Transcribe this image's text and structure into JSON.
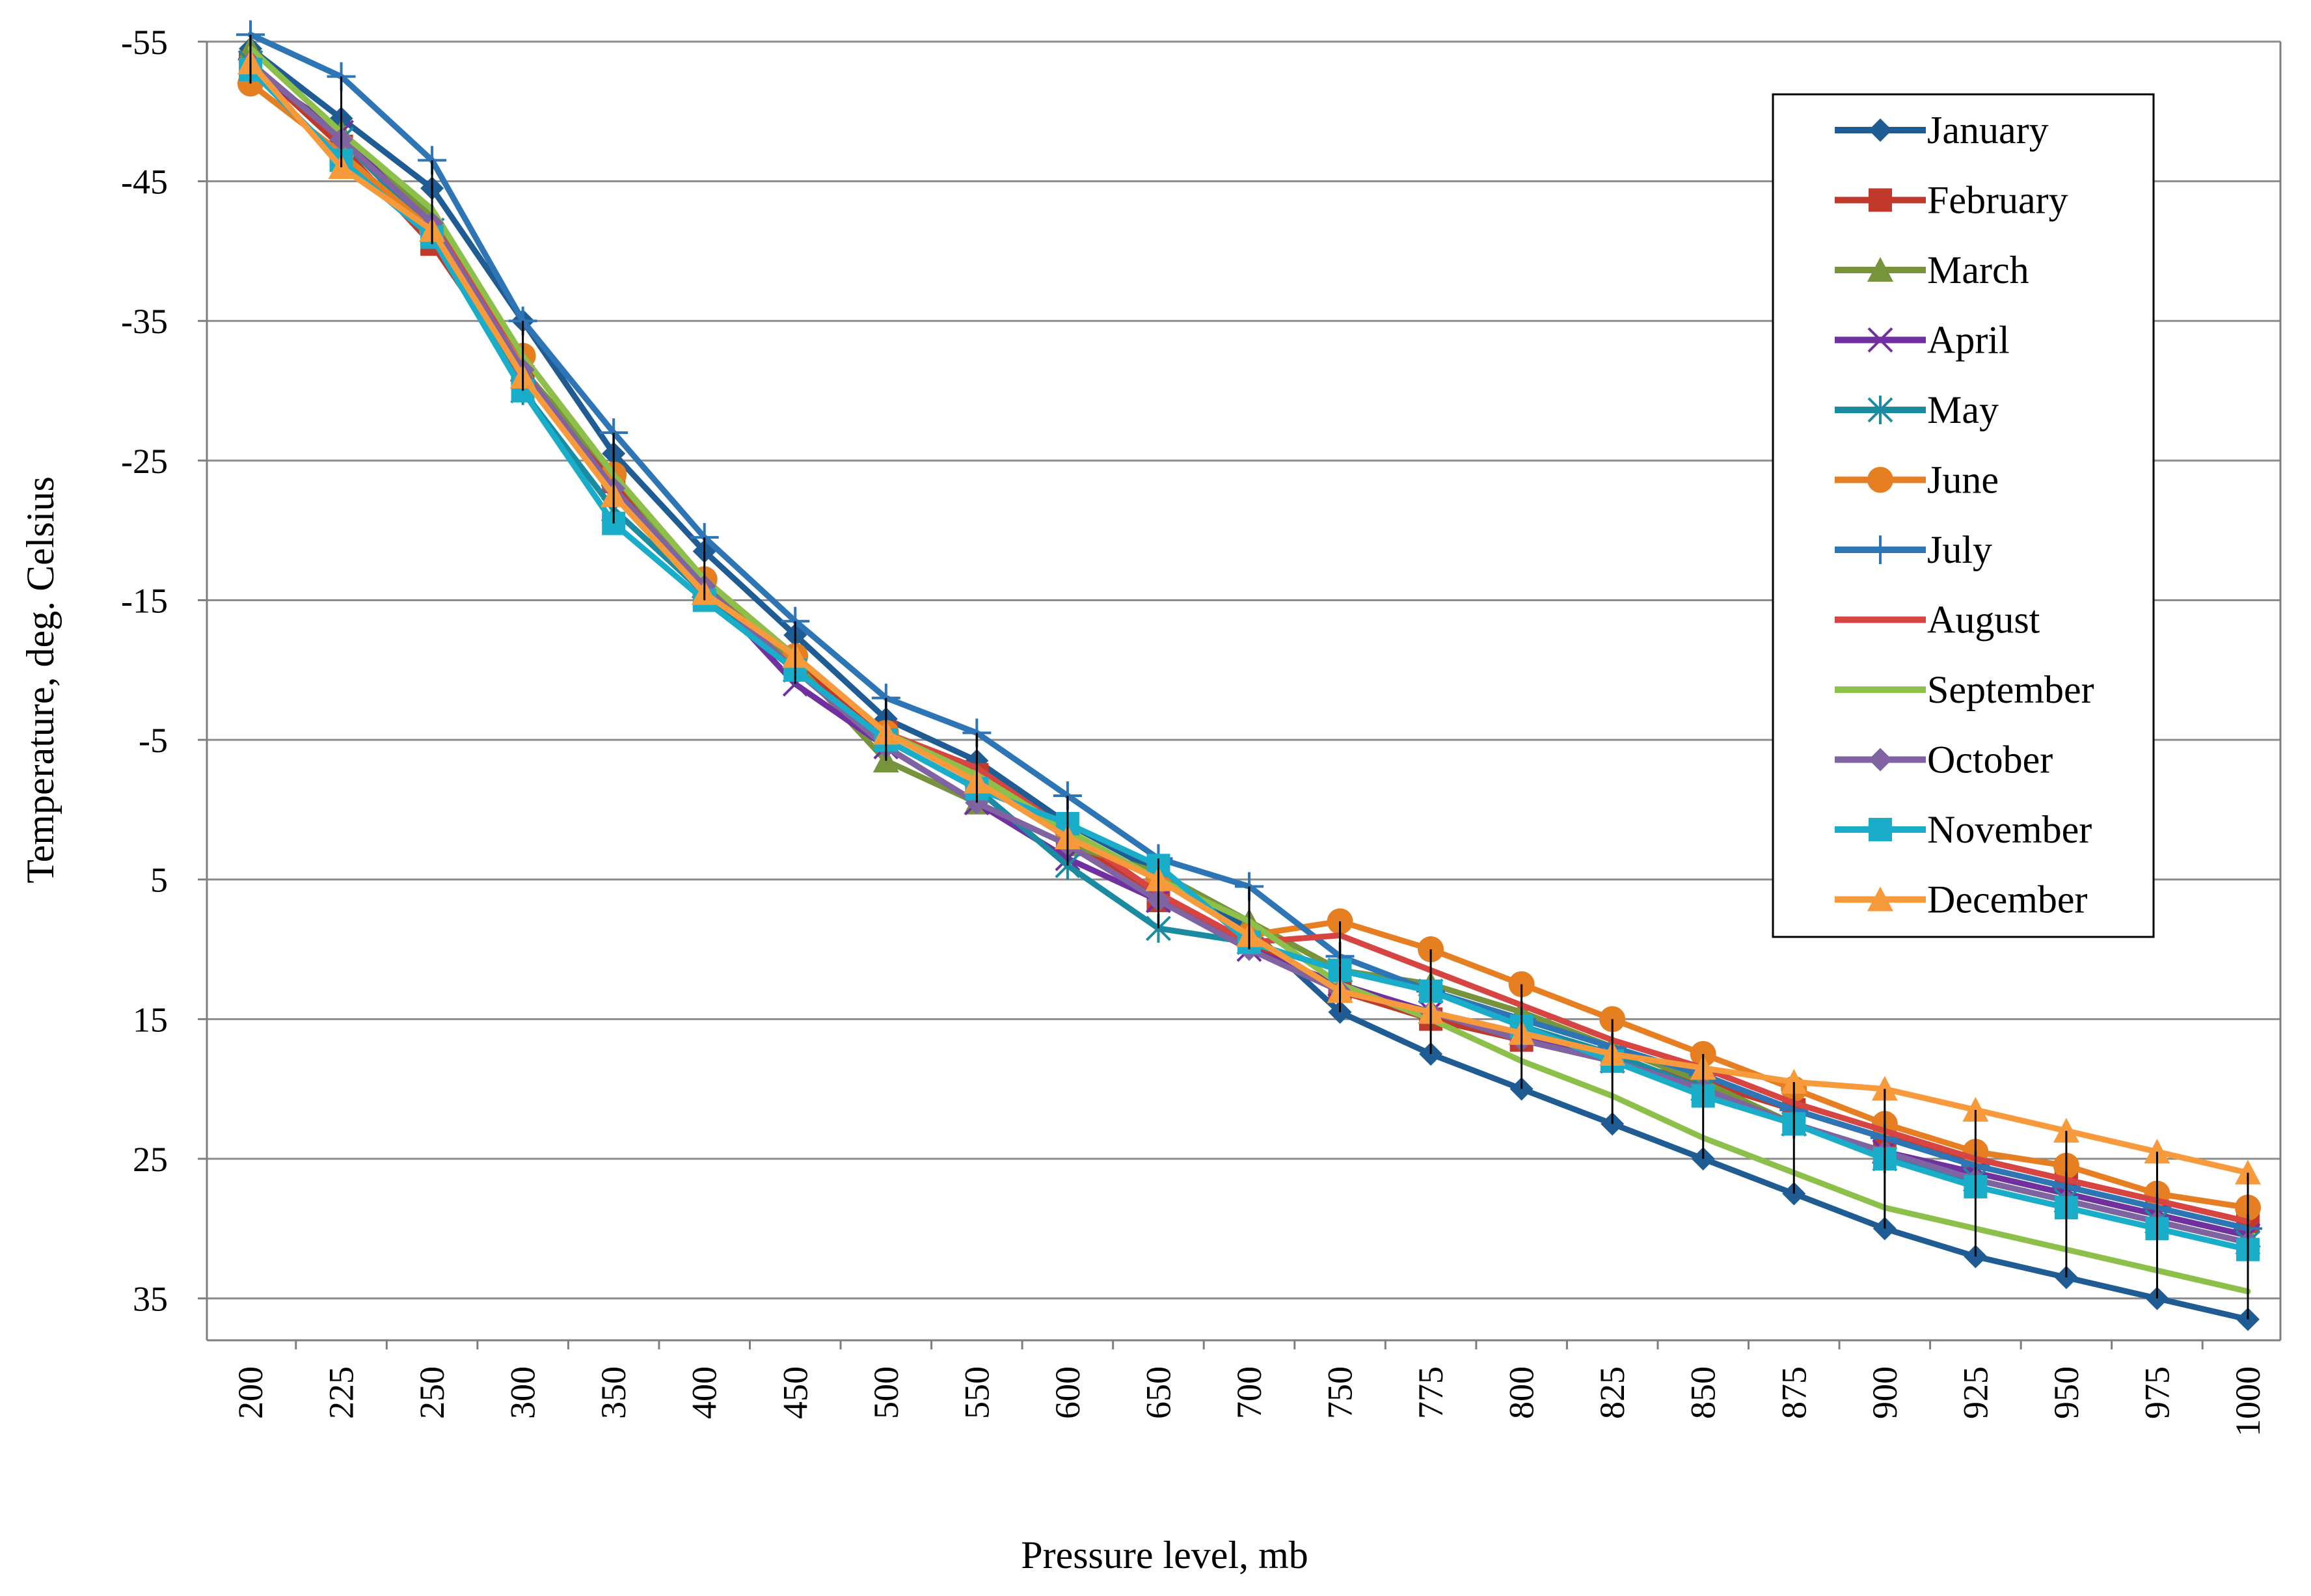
{
  "chart_data": {
    "type": "line",
    "title": "",
    "xlabel": "Pressure level, mb",
    "ylabel": "Temperature, deg. Celsius",
    "ylim": [
      -55,
      38
    ],
    "y_inverted": true,
    "y_ticks": [
      -55,
      -45,
      -35,
      -25,
      -15,
      -5,
      5,
      15,
      25,
      35
    ],
    "grid": true,
    "legend_position": "top-right",
    "categories": [
      "200",
      "225",
      "250",
      "300",
      "350",
      "400",
      "450",
      "500",
      "550",
      "600",
      "650",
      "700",
      "750",
      "775",
      "800",
      "825",
      "850",
      "875",
      "900",
      "925",
      "950",
      "975",
      "1000"
    ],
    "series": [
      {
        "name": "January",
        "color": "#1F5C93",
        "marker": "diamond",
        "values": [
          -54.5,
          -49.5,
          -44.5,
          -35,
          -25.5,
          -18.5,
          -12.5,
          -6.5,
          -3.5,
          1,
          4.5,
          8.5,
          14.5,
          17.5,
          20,
          22.5,
          25,
          27.5,
          30,
          32,
          33.5,
          35,
          36.5
        ]
      },
      {
        "name": "February",
        "color": "#C0392B",
        "marker": "square",
        "values": [
          -53.5,
          -47.5,
          -40.5,
          -31,
          -23.5,
          -16,
          -10.5,
          -5.5,
          -2.5,
          2,
          6.5,
          9.5,
          13,
          15,
          16.5,
          18,
          19.5,
          21.5,
          23.5,
          25,
          26.5,
          28,
          29.5
        ]
      },
      {
        "name": "March",
        "color": "#77933C",
        "marker": "triangle",
        "values": [
          -54.5,
          -48.5,
          -42.5,
          -31.5,
          -24,
          -16,
          -10.5,
          -3.5,
          -0.5,
          2.5,
          4.5,
          8,
          11.5,
          12.5,
          14.5,
          17,
          19.5,
          22.5,
          24.5,
          26,
          27.5,
          29,
          30.5
        ]
      },
      {
        "name": "April",
        "color": "#7030A0",
        "marker": "x",
        "values": [
          -53,
          -48.5,
          -41.5,
          -31.5,
          -22.5,
          -16,
          -9,
          -4.5,
          -0.5,
          3.5,
          6.5,
          10,
          12.5,
          14.5,
          16,
          18,
          20,
          22.5,
          24.5,
          26,
          27.5,
          29,
          30.5
        ]
      },
      {
        "name": "May",
        "color": "#1A8BA0",
        "marker": "asterisk",
        "values": [
          -53.5,
          -48,
          -41.5,
          -30,
          -21.5,
          -15.5,
          -10,
          -5,
          -1.5,
          4,
          8.5,
          9.5,
          11.5,
          13,
          15.5,
          17.5,
          20,
          22.5,
          25,
          26.5,
          28,
          29.5,
          31
        ]
      },
      {
        "name": "June",
        "color": "#E67E22",
        "marker": "circle",
        "values": [
          -52,
          -47,
          -41.5,
          -32.5,
          -24,
          -16.5,
          -11,
          -5.5,
          -2,
          1.5,
          5,
          9,
          8,
          10,
          12.5,
          15,
          17.5,
          20,
          22.5,
          24.5,
          25.5,
          27.5,
          28.5
        ]
      },
      {
        "name": "July",
        "color": "#2E75B6",
        "marker": "plus",
        "values": [
          -55.5,
          -52.5,
          -46.5,
          -35,
          -27,
          -19.5,
          -13.5,
          -8,
          -5.5,
          -1,
          3.5,
          5.5,
          10.5,
          13,
          15,
          17,
          19,
          21.5,
          23.5,
          25.5,
          27,
          28.5,
          30
        ]
      },
      {
        "name": "August",
        "color": "#D64541",
        "marker": "none",
        "values": [
          -53.5,
          -48,
          -42,
          -32.5,
          -24,
          -16.5,
          -11,
          -5.5,
          -3,
          1.5,
          6,
          9.5,
          9,
          11.5,
          14,
          16.5,
          18.5,
          21,
          23,
          25,
          26.5,
          28,
          29.5
        ]
      },
      {
        "name": "September",
        "color": "#8DC04A",
        "marker": "none",
        "values": [
          -54.5,
          -48.5,
          -43,
          -32.5,
          -24,
          -16.5,
          -11,
          -5.5,
          -2.5,
          1.5,
          5,
          8,
          12.5,
          15,
          18,
          20.5,
          23.5,
          26,
          28.5,
          30,
          31.5,
          33,
          34.5
        ]
      },
      {
        "name": "October",
        "color": "#8064A2",
        "marker": "diamond",
        "values": [
          -53.5,
          -48,
          -42,
          -31.5,
          -23,
          -16,
          -10,
          -4.5,
          -0.5,
          2.5,
          6.5,
          10,
          13,
          14.5,
          16.5,
          18,
          20,
          22.5,
          24.5,
          26.5,
          28,
          29.5,
          31
        ]
      },
      {
        "name": "November",
        "color": "#1AADC9",
        "marker": "square",
        "values": [
          -53,
          -46.5,
          -41,
          -30,
          -20.5,
          -15,
          -10,
          -5,
          -1.5,
          1,
          4,
          9.5,
          11.5,
          13,
          15.5,
          18,
          20.5,
          22.5,
          25,
          27,
          28.5,
          30,
          31.5
        ]
      },
      {
        "name": "December",
        "color": "#F79A3B",
        "marker": "triangle",
        "values": [
          -53.5,
          -46,
          -41.5,
          -31,
          -22.5,
          -15.5,
          -11,
          -5.5,
          -2,
          2,
          5,
          9,
          13,
          14.5,
          16,
          17.5,
          18.5,
          19.5,
          20,
          21.5,
          23,
          24.5,
          26
        ]
      }
    ]
  }
}
